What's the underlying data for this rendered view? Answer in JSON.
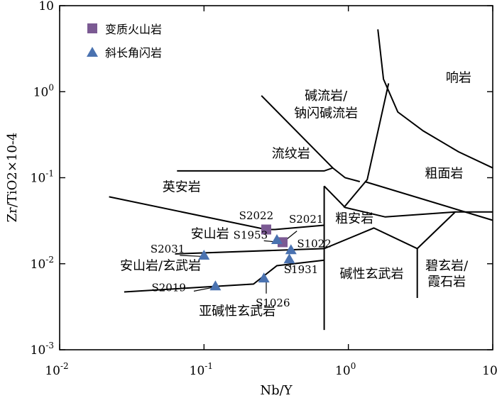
{
  "chart_data": {
    "type": "scatter",
    "x_scale": "log",
    "y_scale": "log",
    "xlim": [
      0.01,
      10
    ],
    "ylim": [
      0.001,
      10
    ],
    "xlabel": "Nb/Y",
    "ylabel": "Zr/TiO2×10-4",
    "x_ticks": [
      {
        "value": 0.01,
        "base": "10",
        "exp": "-2"
      },
      {
        "value": 0.1,
        "base": "10",
        "exp": "-1"
      },
      {
        "value": 1,
        "base": "10",
        "exp": "0"
      },
      {
        "value": 10,
        "base": "10",
        "exp": ""
      }
    ],
    "y_ticks": [
      {
        "value": 0.001,
        "base": "10",
        "exp": "-3"
      },
      {
        "value": 0.01,
        "base": "10",
        "exp": "-2"
      },
      {
        "value": 0.1,
        "base": "10",
        "exp": "-1"
      },
      {
        "value": 1,
        "base": "10",
        "exp": "0"
      },
      {
        "value": 10,
        "base": "10",
        "exp": ""
      }
    ],
    "legend": [
      {
        "name": "变质火山岩",
        "marker": "square",
        "color": "#7b5a93"
      },
      {
        "name": "斜长角闪岩",
        "marker": "triangle",
        "color": "#4a72b0"
      }
    ],
    "series": [
      {
        "name": "变质火山岩",
        "marker": "square",
        "color": "#7b5a93",
        "points": [
          {
            "id": "S2022",
            "x": 0.27,
            "y": 0.025
          },
          {
            "id": "S2021",
            "x": 0.35,
            "y": 0.0178
          }
        ]
      },
      {
        "name": "斜长角闪岩",
        "marker": "triangle",
        "color": "#4a72b0",
        "points": [
          {
            "id": "S1953",
            "x": 0.32,
            "y": 0.019
          },
          {
            "id": "S1022",
            "x": 0.4,
            "y": 0.0145
          },
          {
            "id": "S1931",
            "x": 0.39,
            "y": 0.0113
          },
          {
            "id": "S2031",
            "x": 0.1,
            "y": 0.0125
          },
          {
            "id": "S2019",
            "x": 0.12,
            "y": 0.0055
          },
          {
            "id": "S1026",
            "x": 0.26,
            "y": 0.0068
          }
        ]
      }
    ],
    "field_labels": [
      {
        "text": "响岩",
        "x": 5.8,
        "y": 1.3
      },
      {
        "text": "碱流岩/",
        "x": 0.7,
        "y": 0.8
      },
      {
        "text": "钠闪碱流岩",
        "x": 0.7,
        "y": 0.5
      },
      {
        "text": "流纹岩",
        "x": 0.4,
        "y": 0.17
      },
      {
        "text": "粗面岩",
        "x": 4.6,
        "y": 0.1
      },
      {
        "text": "英安岩",
        "x": 0.07,
        "y": 0.07
      },
      {
        "text": "粗安岩",
        "x": 1.1,
        "y": 0.03
      },
      {
        "text": "安山岩",
        "x": 0.11,
        "y": 0.02
      },
      {
        "text": "安山岩/玄武岩",
        "x": 0.05,
        "y": 0.0085
      },
      {
        "text": "碱性玄武岩",
        "x": 1.45,
        "y": 0.0068
      },
      {
        "text": "碧玄岩/",
        "x": 4.8,
        "y": 0.0085
      },
      {
        "text": "霞石岩",
        "x": 4.8,
        "y": 0.0055
      },
      {
        "text": "亚碱性玄武岩",
        "x": 0.17,
        "y": 0.0025
      }
    ],
    "boundaries": [
      [
        [
          1.6,
          5.3
        ],
        [
          1.75,
          1.4
        ],
        [
          2.2,
          0.58
        ],
        [
          3.3,
          0.35
        ],
        [
          5.8,
          0.2
        ],
        [
          10,
          0.13
        ]
      ],
      [
        [
          0.25,
          0.9
        ],
        [
          0.78,
          0.13
        ]
      ],
      [
        [
          0.93,
          0.045
        ],
        [
          1.35,
          0.095
        ],
        [
          1.9,
          1.25
        ]
      ],
      [
        [
          1.3,
          0.09
        ],
        [
          10,
          0.032
        ]
      ],
      [
        [
          0.065,
          0.12
        ],
        [
          0.68,
          0.12
        ],
        [
          0.78,
          0.13
        ],
        [
          0.95,
          0.1
        ],
        [
          1.2,
          0.09
        ]
      ],
      [
        [
          0.022,
          0.06
        ],
        [
          0.27,
          0.025
        ],
        [
          0.31,
          0.025
        ],
        [
          0.68,
          0.028
        ]
      ],
      [
        [
          0.68,
          0.08
        ],
        [
          0.68,
          0.0017
        ]
      ],
      [
        [
          0.063,
          0.013
        ],
        [
          0.68,
          0.015
        ],
        [
          1.5,
          0.026
        ],
        [
          3,
          0.015
        ],
        [
          5.5,
          0.04
        ],
        [
          10,
          0.04
        ]
      ],
      [
        [
          0.68,
          0.08
        ],
        [
          0.95,
          0.045
        ],
        [
          1.8,
          0.035
        ],
        [
          5.5,
          0.04
        ]
      ],
      [
        [
          3,
          0.015
        ],
        [
          3,
          0.004
        ]
      ],
      [
        [
          0.028,
          0.0047
        ],
        [
          0.22,
          0.0058
        ],
        [
          0.32,
          0.0095
        ],
        [
          0.68,
          0.011
        ]
      ]
    ],
    "sample_leaders": [
      {
        "id": "S1953",
        "label_x": 0.21,
        "label_y": 0.0195,
        "line": [
          [
            0.26,
            0.0185
          ],
          [
            0.31,
            0.018
          ]
        ]
      },
      {
        "id": "S2031",
        "label_x": 0.056,
        "label_y": 0.0135,
        "line": [
          [
            0.068,
            0.0125
          ],
          [
            0.095,
            0.0122
          ]
        ]
      },
      {
        "id": "S2019",
        "label_x": 0.057,
        "label_y": 0.0048,
        "line": [
          [
            0.085,
            0.0048
          ],
          [
            0.115,
            0.0053
          ]
        ]
      },
      {
        "id": "S1026",
        "label_x": 0.3,
        "label_y": 0.0032,
        "line": [
          [
            0.27,
            0.0045
          ],
          [
            0.27,
            0.0062
          ]
        ]
      },
      {
        "id": "S1931",
        "label_x": 0.47,
        "label_y": 0.0078,
        "line": [
          [
            0.4,
            0.0085
          ],
          [
            0.395,
            0.0105
          ]
        ]
      },
      {
        "id": "S1022",
        "label_x": 0.58,
        "label_y": 0.0155,
        "line": [
          [
            0.5,
            0.0148
          ],
          [
            0.42,
            0.0145
          ]
        ]
      },
      {
        "id": "S2021",
        "label_x": 0.51,
        "label_y": 0.03,
        "line": [
          [
            0.44,
            0.024
          ],
          [
            0.37,
            0.019
          ]
        ]
      },
      {
        "id": "S2022",
        "label_x": 0.23,
        "label_y": 0.033,
        "line": []
      }
    ]
  }
}
